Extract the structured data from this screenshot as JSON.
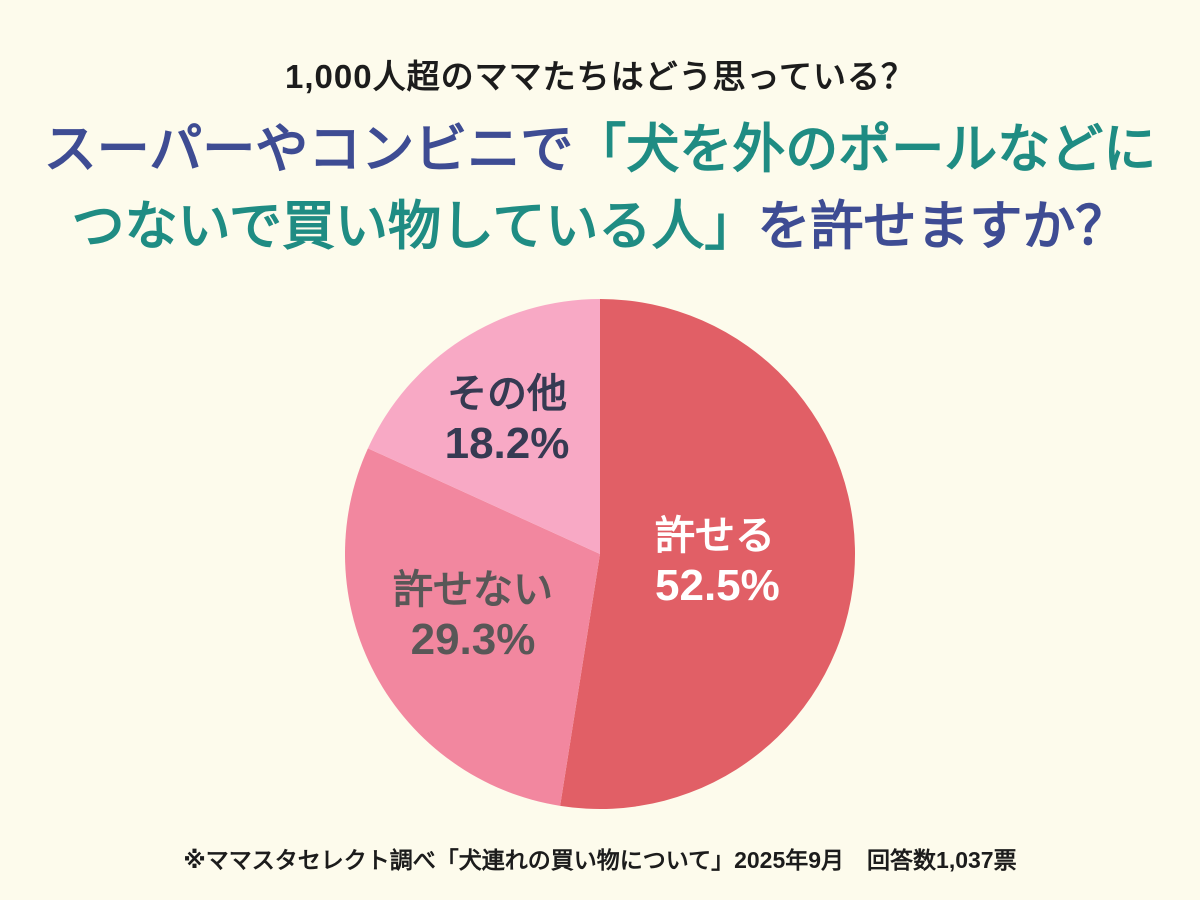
{
  "colors": {
    "background": "#FDFBEC",
    "title_navy": "#3E4C93",
    "title_teal": "#1F8C83",
    "lead_text": "#1C1C1C",
    "footer_text": "#1C1C1C"
  },
  "header": {
    "text": "1,000人超のママたちはどう思っている？"
  },
  "title": {
    "line1": [
      {
        "text": "スーパーやコンビニで",
        "color_role": "navy"
      },
      {
        "text": "「犬を外のポールなどに",
        "color_role": "teal"
      }
    ],
    "line2": [
      {
        "text": "つないで買い物している人」",
        "color_role": "teal"
      },
      {
        "text": "を許せますか？",
        "color_role": "navy"
      }
    ]
  },
  "chart_data": {
    "type": "pie",
    "title": "スーパーやコンビニで「犬を外のポールなどにつないで買い物している人」を許せますか？",
    "start_angle_deg": 0,
    "direction": "clockwise",
    "legend_position": "none",
    "labels_on_slices": true,
    "total_percent": 100,
    "segments": [
      {
        "label": "許せる",
        "value": 52.5,
        "value_label": "52.5%",
        "color": "#E15F66",
        "label_color": "#FFFFFF"
      },
      {
        "label": "許せない",
        "value": 29.3,
        "value_label": "29.3%",
        "color": "#F2879F",
        "label_color": "#595757"
      },
      {
        "label": "その他",
        "value": 18.2,
        "value_label": "18.2%",
        "color": "#F8A9C5",
        "label_color": "#363A52"
      }
    ]
  },
  "footer": {
    "text": "※ママスタセレクト調べ「犬連れの買い物について」2025年9月　回答数1,037票"
  }
}
